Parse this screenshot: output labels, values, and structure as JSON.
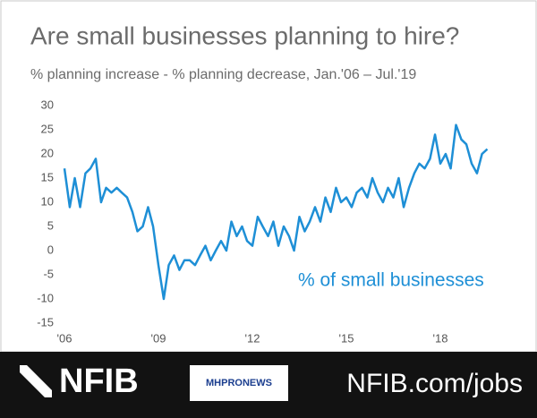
{
  "chart_data": {
    "type": "line",
    "title": "Are small businesses planning to hire?",
    "subtitle": "% planning increase - % planning decrease, Jan.'06 – Jul.'19",
    "annotation": "% of small businesses",
    "color": "#1e8fd6",
    "x": [
      2006,
      2006.17,
      2006.33,
      2006.5,
      2006.67,
      2006.83,
      2007,
      2007.17,
      2007.33,
      2007.5,
      2007.67,
      2007.83,
      2008,
      2008.17,
      2008.33,
      2008.5,
      2008.67,
      2008.83,
      2009,
      2009.17,
      2009.33,
      2009.5,
      2009.67,
      2009.83,
      2010,
      2010.17,
      2010.33,
      2010.5,
      2010.67,
      2010.83,
      2011,
      2011.17,
      2011.33,
      2011.5,
      2011.67,
      2011.83,
      2012,
      2012.17,
      2012.33,
      2012.5,
      2012.67,
      2012.83,
      2013,
      2013.17,
      2013.33,
      2013.5,
      2013.67,
      2013.83,
      2014,
      2014.17,
      2014.33,
      2014.5,
      2014.67,
      2014.83,
      2015,
      2015.17,
      2015.33,
      2015.5,
      2015.67,
      2015.83,
      2016,
      2016.17,
      2016.33,
      2016.5,
      2016.67,
      2016.83,
      2017,
      2017.17,
      2017.33,
      2017.5,
      2017.67,
      2017.83,
      2018,
      2018.17,
      2018.33,
      2018.5,
      2018.67,
      2018.83,
      2019,
      2019.17,
      2019.33,
      2019.5
    ],
    "values": [
      17,
      9,
      15,
      9,
      16,
      17,
      19,
      10,
      13,
      12,
      13,
      12,
      11,
      8,
      4,
      5,
      9,
      5,
      -3,
      -10,
      -3,
      -1,
      -4,
      -2,
      -2,
      -3,
      -1,
      1,
      -2,
      0,
      2,
      0,
      6,
      3,
      5,
      2,
      1,
      7,
      5,
      3,
      6,
      1,
      5,
      3,
      0,
      7,
      4,
      6,
      9,
      6,
      11,
      8,
      13,
      10,
      11,
      9,
      12,
      13,
      11,
      15,
      12,
      10,
      13,
      11,
      15,
      9,
      13,
      16,
      18,
      17,
      19,
      24,
      18,
      20,
      17,
      26,
      23,
      22,
      18,
      16,
      20,
      21
    ],
    "xlim": [
      2006,
      2019.6
    ],
    "xticks": [
      {
        "value": 2006,
        "label": "'06"
      },
      {
        "value": 2009,
        "label": "'09"
      },
      {
        "value": 2012,
        "label": "'12"
      },
      {
        "value": 2015,
        "label": "'15"
      },
      {
        "value": 2018,
        "label": "'18"
      }
    ],
    "ylim": [
      -15,
      30
    ],
    "yticks": [
      30,
      25,
      20,
      15,
      10,
      5,
      0,
      -5,
      -10,
      -15
    ],
    "grid": false
  },
  "footer": {
    "logo": "NFIB",
    "badge": "MHPRONEWS",
    "url": "NFIB.com/jobs"
  }
}
